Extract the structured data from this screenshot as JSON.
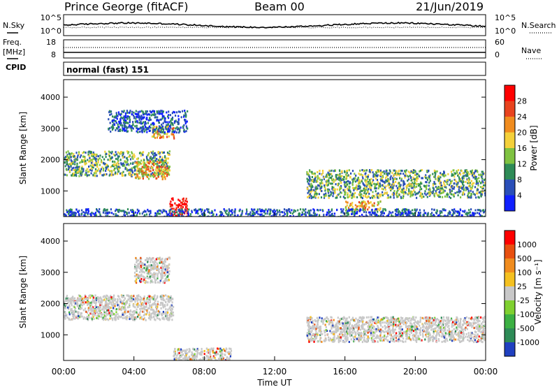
{
  "header": {
    "station": "Prince George (fitACF)",
    "beam": "Beam 00",
    "date": "21/Jun/2019"
  },
  "noise_panel": {
    "left_label": "N.Sky",
    "right_label": "N.Search",
    "left_ticks": [
      "10^5",
      "10^0"
    ],
    "right_ticks": [
      "10^5",
      "10^0"
    ]
  },
  "freq_panel": {
    "left_label_line1": "Freq.",
    "left_label_line2": "[MHz]",
    "right_label": "Nave",
    "left_ticks": [
      "18",
      "8"
    ],
    "right_ticks": [
      "60",
      "0"
    ]
  },
  "cpid": {
    "label": "CPID",
    "text": "normal (fast) 151"
  },
  "time_axis": {
    "label": "Time UT",
    "ticks": [
      "00:00",
      "04:00",
      "08:00",
      "12:00",
      "16:00",
      "20:00",
      "00:00"
    ]
  },
  "range_axis": {
    "label": "Slant Range [km]",
    "ticks": [
      "1000",
      "2000",
      "3000",
      "4000"
    ]
  },
  "chart_data": [
    {
      "type": "heatmap",
      "name": "power",
      "xlabel": "Time UT",
      "ylabel": "Slant Range [km]",
      "xlim": [
        0,
        24
      ],
      "ylim": [
        180,
        4560
      ],
      "colorbar": {
        "label": "Power [dB]",
        "ticks": [
          "4",
          "8",
          "12",
          "16",
          "20",
          "24",
          "28"
        ],
        "colors": [
          "#1020ff",
          "#2a4fb8",
          "#2e8b57",
          "#7fc241",
          "#f4d03a",
          "#f08c1e",
          "#e8431e",
          "#ff0000"
        ]
      },
      "echo_regions": [
        {
          "t": [
            0.0,
            6.0
          ],
          "range": [
            1500,
            2300
          ],
          "level": "medium"
        },
        {
          "t": [
            4.0,
            5.9
          ],
          "range": [
            1400,
            2000
          ],
          "level": "high"
        },
        {
          "t": [
            5.0,
            6.3
          ],
          "range": [
            2700,
            3100
          ],
          "level": "high"
        },
        {
          "t": [
            2.5,
            7.0
          ],
          "range": [
            2900,
            3600
          ],
          "level": "low"
        },
        {
          "t": [
            6.0,
            7.0
          ],
          "range": [
            200,
            800
          ],
          "level": "peak"
        },
        {
          "t": [
            13.8,
            24.0
          ],
          "range": [
            800,
            1700
          ],
          "level": "medium"
        },
        {
          "t": [
            16.0,
            18.0
          ],
          "range": [
            400,
            700
          ],
          "level": "high"
        },
        {
          "t": [
            0.0,
            24.0
          ],
          "range": [
            180,
            450
          ],
          "level": "low"
        }
      ]
    },
    {
      "type": "heatmap",
      "name": "velocity",
      "xlabel": "Time UT",
      "ylabel": "Slant Range [km]",
      "xlim": [
        0,
        24
      ],
      "ylim": [
        180,
        4560
      ],
      "colorbar": {
        "label": "Velocity [m s⁻¹]",
        "ticks": [
          "1000",
          "500",
          "100",
          "25",
          "-25",
          "-100",
          "-500",
          "-1000"
        ],
        "colors": [
          "#2040c0",
          "#2e8b57",
          "#3cb043",
          "#7fd030",
          "#c8c8c8",
          "#f4c020",
          "#f08c1e",
          "#e85010",
          "#ff0000"
        ]
      },
      "ground_scatter": [
        {
          "t": [
            0.0,
            6.2
          ],
          "range": [
            1500,
            2300
          ]
        },
        {
          "t": [
            4.0,
            6.0
          ],
          "range": [
            2700,
            3500
          ]
        },
        {
          "t": [
            13.8,
            24.0
          ],
          "range": [
            800,
            1600
          ]
        },
        {
          "t": [
            6.2,
            9.5
          ],
          "range": [
            200,
            600
          ]
        }
      ]
    }
  ]
}
